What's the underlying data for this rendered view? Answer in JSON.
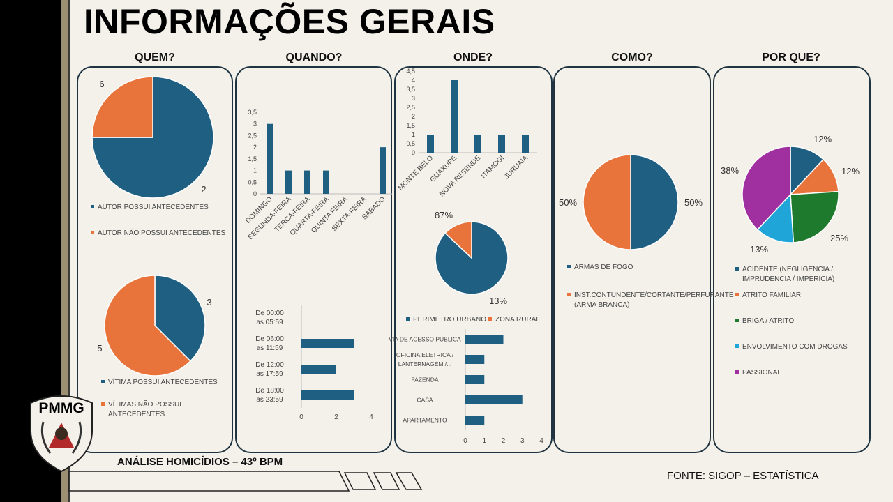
{
  "title": "INFORMAÇÕES GERAIS",
  "footer": {
    "label": "ANÁLISE HOMICÍDIOS – 43º BPM",
    "source": "FONTE: SIGOP – ESTATÍSTICA"
  },
  "logo_text": "PMMG",
  "colors": {
    "blue": "#1f5f82",
    "orange": "#e8743b",
    "green": "#1e7a2c",
    "cyan": "#1fa5d8",
    "purple": "#a030a0",
    "panel_border": "#1f3440"
  },
  "sections": [
    {
      "title": "QUEM?"
    },
    {
      "title": "QUANDO?"
    },
    {
      "title": "ONDE?"
    },
    {
      "title": "COMO?"
    },
    {
      "title": "POR QUE?"
    }
  ],
  "chart_data": [
    {
      "id": "quem_autor",
      "type": "pie",
      "labels": [
        "AUTOR POSSUI ANTECEDENTES",
        "AUTOR NÃO POSSUI ANTECEDENTES"
      ],
      "values": [
        6,
        2
      ],
      "value_labels": [
        "6",
        "2"
      ],
      "legend": "bottom"
    },
    {
      "id": "quem_vitima",
      "type": "pie",
      "labels": [
        "VÍTIMA POSSUI ANTECEDENTES",
        "VÍTIMAS NÃO POSSUI ANTECEDENTES"
      ],
      "values": [
        3,
        5
      ],
      "value_labels": [
        "3",
        "5"
      ],
      "legend": "bottom"
    },
    {
      "id": "quando_dia",
      "type": "bar",
      "categories": [
        "DOMINGO",
        "SEGUNDA-FEIRA",
        "TERCA-FEIRA",
        "QUARTA-FEIRA",
        "QUINTA FEIRA",
        "SEXTA-FEIRA",
        "SABADO"
      ],
      "values": [
        3,
        1,
        1,
        1,
        0,
        0,
        2
      ],
      "ylim": [
        0,
        3.5
      ],
      "yticks": [
        "0",
        "0,5",
        "1",
        "1,5",
        "2",
        "2,5",
        "3",
        "3,5"
      ]
    },
    {
      "id": "quando_hora",
      "type": "bar",
      "orientation": "horizontal",
      "categories": [
        "De 00:00 as 05:59",
        "De 06:00 as 11:59",
        "De 12:00 as 17:59",
        "De 18:00 as 23:59"
      ],
      "values": [
        0,
        3,
        2,
        3
      ],
      "xlim": [
        0,
        4
      ],
      "xticks": [
        "0",
        "2",
        "4"
      ]
    },
    {
      "id": "onde_cidade",
      "type": "bar",
      "categories": [
        "MONTE BELO",
        "GUAXUPE",
        "NOVA RESENDE",
        "ITAMOGI",
        "JURUAIA"
      ],
      "values": [
        1,
        4,
        1,
        1,
        1
      ],
      "ylim": [
        0,
        4.5
      ],
      "yticks": [
        "0",
        "0,5",
        "1",
        "1,5",
        "2",
        "2,5",
        "3",
        "3,5",
        "4",
        "4,5"
      ]
    },
    {
      "id": "onde_zona",
      "type": "pie",
      "labels": [
        "PERIMETRO URBANO",
        "ZONA RURAL"
      ],
      "values": [
        87,
        13
      ],
      "value_labels": [
        "87%",
        "13%"
      ],
      "legend": "bottom"
    },
    {
      "id": "onde_local",
      "type": "bar",
      "orientation": "horizontal",
      "categories": [
        "VIA DE ACESSO PUBLICA",
        "OFICINA ELETRICA / LANTERNAGEM /...",
        "FAZENDA",
        "CASA",
        "APARTAMENTO"
      ],
      "values": [
        2,
        1,
        1,
        3,
        1
      ],
      "xlim": [
        0,
        4
      ],
      "xticks": [
        "0",
        "1",
        "2",
        "3",
        "4"
      ]
    },
    {
      "id": "como",
      "type": "pie",
      "labels": [
        "ARMAS DE FOGO",
        "INST.CONTUNDENTE/CORTANTE/PERFURANTE (ARMA BRANCA)"
      ],
      "values": [
        50,
        50
      ],
      "value_labels": [
        "50%",
        "50%"
      ],
      "legend": "bottom"
    },
    {
      "id": "porque",
      "type": "pie",
      "labels": [
        "ACIDENTE (NEGLIGENCIA / IMPRUDENCIA / IMPERICIA)",
        "ATRITO FAMILIAR",
        "BRIGA / ATRITO",
        "ENVOLVIMENTO COM DROGAS",
        "PASSIONAL"
      ],
      "values": [
        12,
        12,
        25,
        13,
        38
      ],
      "value_labels": [
        "12%",
        "12%",
        "25%",
        "13%",
        "38%"
      ],
      "legend": "bottom"
    }
  ]
}
